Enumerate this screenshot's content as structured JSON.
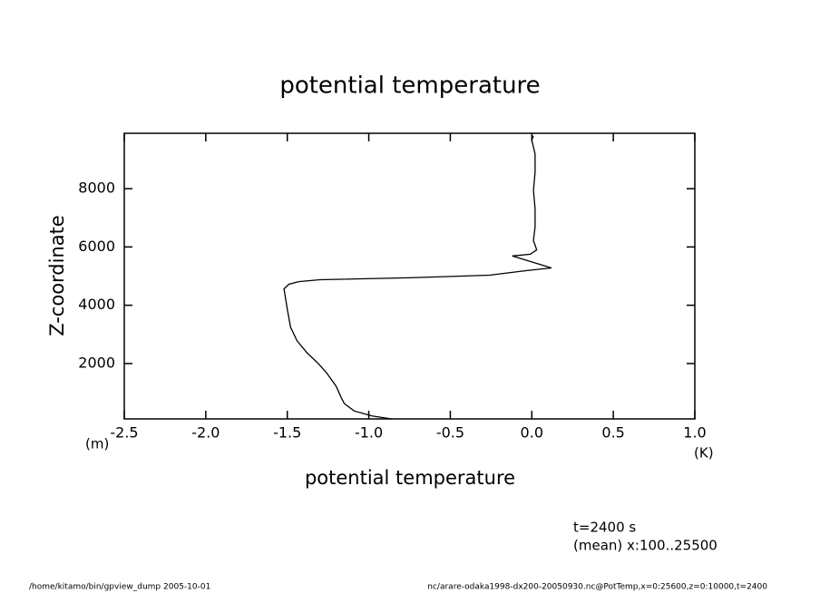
{
  "chart_data": {
    "type": "line",
    "title": "potential temperature",
    "x_label": "potential temperature",
    "y_label": "Z-coordinate",
    "y_unit": "(m)",
    "x_unit": "(K)",
    "annotations": [
      "t=2400 s",
      "(mean) x:100..25500"
    ],
    "footer_left": "/home/kitamo/bin/gpview_dump  2005-10-01",
    "footer_right": "nc/arare-odaka1998-dx200-20050930.nc@PotTemp,x=0:25600,z=0:10000,t=2400",
    "color": "#000000",
    "y": [
      100,
      200,
      375,
      625,
      840,
      1220,
      1690,
      2000,
      2375,
      2780,
      3250,
      3875,
      4560,
      4720,
      4810,
      4875,
      4940,
      5030,
      5190,
      5280,
      5690,
      5750,
      5900,
      6220,
      6690,
      7310,
      7940,
      8560,
      9190,
      9660,
      9820
    ],
    "values": [
      -0.86,
      -0.98,
      -1.09,
      -1.15,
      -1.17,
      -1.2,
      -1.26,
      -1.31,
      -1.38,
      -1.44,
      -1.48,
      -1.5,
      -1.52,
      -1.49,
      -1.43,
      -1.3,
      -0.76,
      -0.26,
      -0.03,
      0.12,
      -0.12,
      -0.01,
      0.03,
      0.01,
      0.02,
      0.02,
      0.01,
      0.02,
      0.02,
      0.0,
      0.01
    ],
    "xlim": [
      -2.5,
      1.0
    ],
    "xticks": [
      {
        "value": -2.5,
        "label": "-2.5"
      },
      {
        "value": -2.0,
        "label": "-2.0"
      },
      {
        "value": -1.5,
        "label": "-1.5"
      },
      {
        "value": -1.0,
        "label": "-1.0"
      },
      {
        "value": -0.5,
        "label": "-0.5"
      },
      {
        "value": 0.0,
        "label": "0.0"
      },
      {
        "value": 0.5,
        "label": "0.5"
      },
      {
        "value": 1.0,
        "label": "1.0"
      }
    ],
    "ylim": [
      100,
      9900
    ],
    "yticks": [
      2000,
      4000,
      6000,
      8000
    ]
  }
}
